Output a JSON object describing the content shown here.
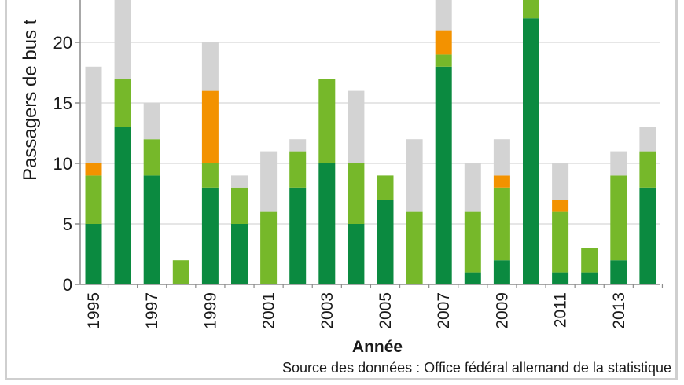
{
  "chart_data": {
    "type": "bar",
    "stacked": true,
    "title": "",
    "xlabel": "Année",
    "ylabel": "Passagers de bus t",
    "ylim": [
      0,
      24
    ],
    "yticks": [
      0,
      5,
      10,
      15,
      20
    ],
    "categories": [
      "1995",
      "1996",
      "1997",
      "1998",
      "1999",
      "2000",
      "2001",
      "2002",
      "2003",
      "2004",
      "2005",
      "2006",
      "2007",
      "2008",
      "2009",
      "2010",
      "2011",
      "2012",
      "2013",
      "2014"
    ],
    "xtick_labels": [
      "1995",
      "1997",
      "1999",
      "2001",
      "2003",
      "2005",
      "2007",
      "2009",
      "2011",
      "2013"
    ],
    "series": [
      {
        "name": "dark-green",
        "color": "#0b8a40",
        "values": [
          5,
          13,
          9,
          0,
          8,
          5,
          0,
          8,
          10,
          5,
          7,
          0,
          18,
          1,
          2,
          22,
          1,
          1,
          2,
          8
        ]
      },
      {
        "name": "light-green",
        "color": "#76b82a",
        "values": [
          4,
          4,
          3,
          2,
          2,
          3,
          6,
          3,
          7,
          5,
          2,
          6,
          1,
          5,
          6,
          2,
          5,
          2,
          7,
          3
        ]
      },
      {
        "name": "orange",
        "color": "#f39200",
        "values": [
          1,
          0,
          0,
          0,
          6,
          0,
          0,
          0,
          0,
          0,
          0,
          0,
          2,
          0,
          1,
          0,
          1,
          0,
          0,
          0
        ]
      },
      {
        "name": "grey",
        "color": "#d3d3d3",
        "values": [
          8,
          7,
          3,
          0,
          4,
          1,
          5,
          1,
          0,
          6,
          0,
          6,
          3,
          4,
          3,
          0,
          3,
          0,
          2,
          2
        ]
      }
    ],
    "source": "Source des données : Office fédéral allemand de la statistique"
  },
  "colors": {
    "grid": "#d6d6d6",
    "axis": "#8c8c8c",
    "frame": "#cfcfcf"
  }
}
